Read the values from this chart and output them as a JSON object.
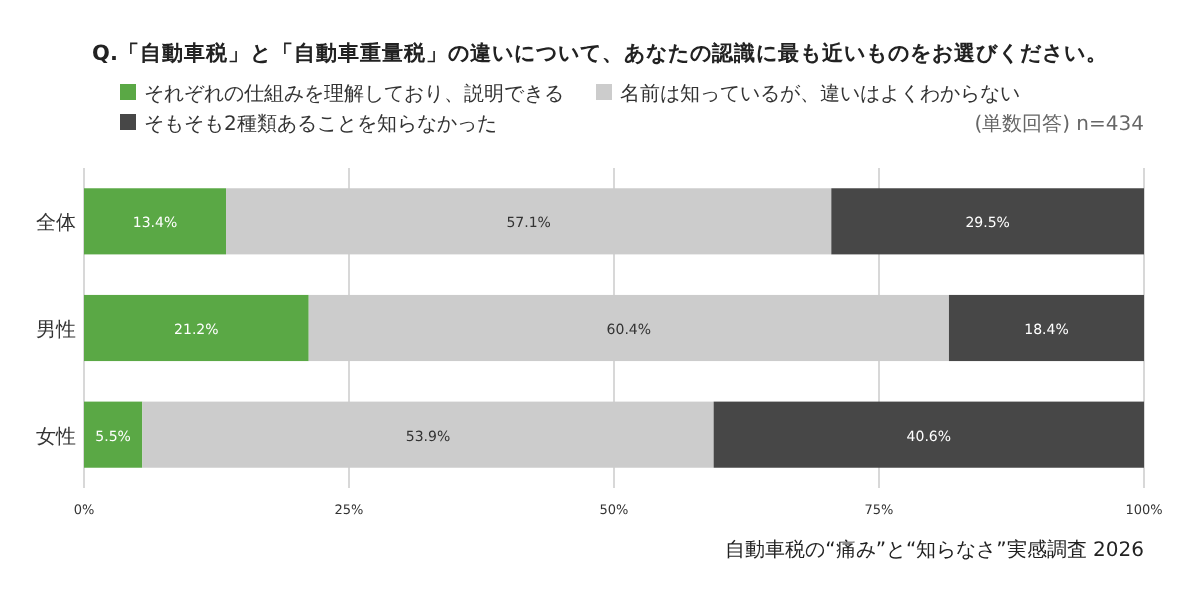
{
  "chart_data": {
    "type": "bar",
    "orientation": "horizontal",
    "stacked": true,
    "title": "Q.「自動車税」と「自動車重量税」の違いについて、あなたの認識に最も近いものをお選びください。",
    "categories": [
      "全体",
      "男性",
      "女性"
    ],
    "series": [
      {
        "name": "それぞれの仕組みを理解しており、説明できる",
        "color": "#5aa845",
        "values": [
          13.4,
          21.2,
          5.5
        ],
        "value_labels": [
          "13.4%",
          "21.2%",
          "5.5%"
        ]
      },
      {
        "name": "名前は知っているが、違いはよくわからない",
        "color": "#cccccc",
        "values": [
          57.1,
          60.4,
          53.9
        ],
        "value_labels": [
          "57.1%",
          "60.4%",
          "53.9%"
        ]
      },
      {
        "name": "そもそも2種類あることを知らなかった",
        "color": "#474747",
        "values": [
          29.5,
          18.4,
          40.6
        ],
        "value_labels": [
          "29.5%",
          "18.4%",
          "40.6%"
        ]
      }
    ],
    "xlim": [
      0,
      100
    ],
    "xticks": [
      {
        "value": 0,
        "label": "0%"
      },
      {
        "value": 25,
        "label": "25%"
      },
      {
        "value": 50,
        "label": "50%"
      },
      {
        "value": 75,
        "label": "75%"
      },
      {
        "value": 100,
        "label": "100%"
      }
    ],
    "grid": "x",
    "legend": "top",
    "annotations": [
      "(単数回答) n=434",
      "自動車税の“痛み”と“知らなさ”実感調査 2026"
    ]
  }
}
